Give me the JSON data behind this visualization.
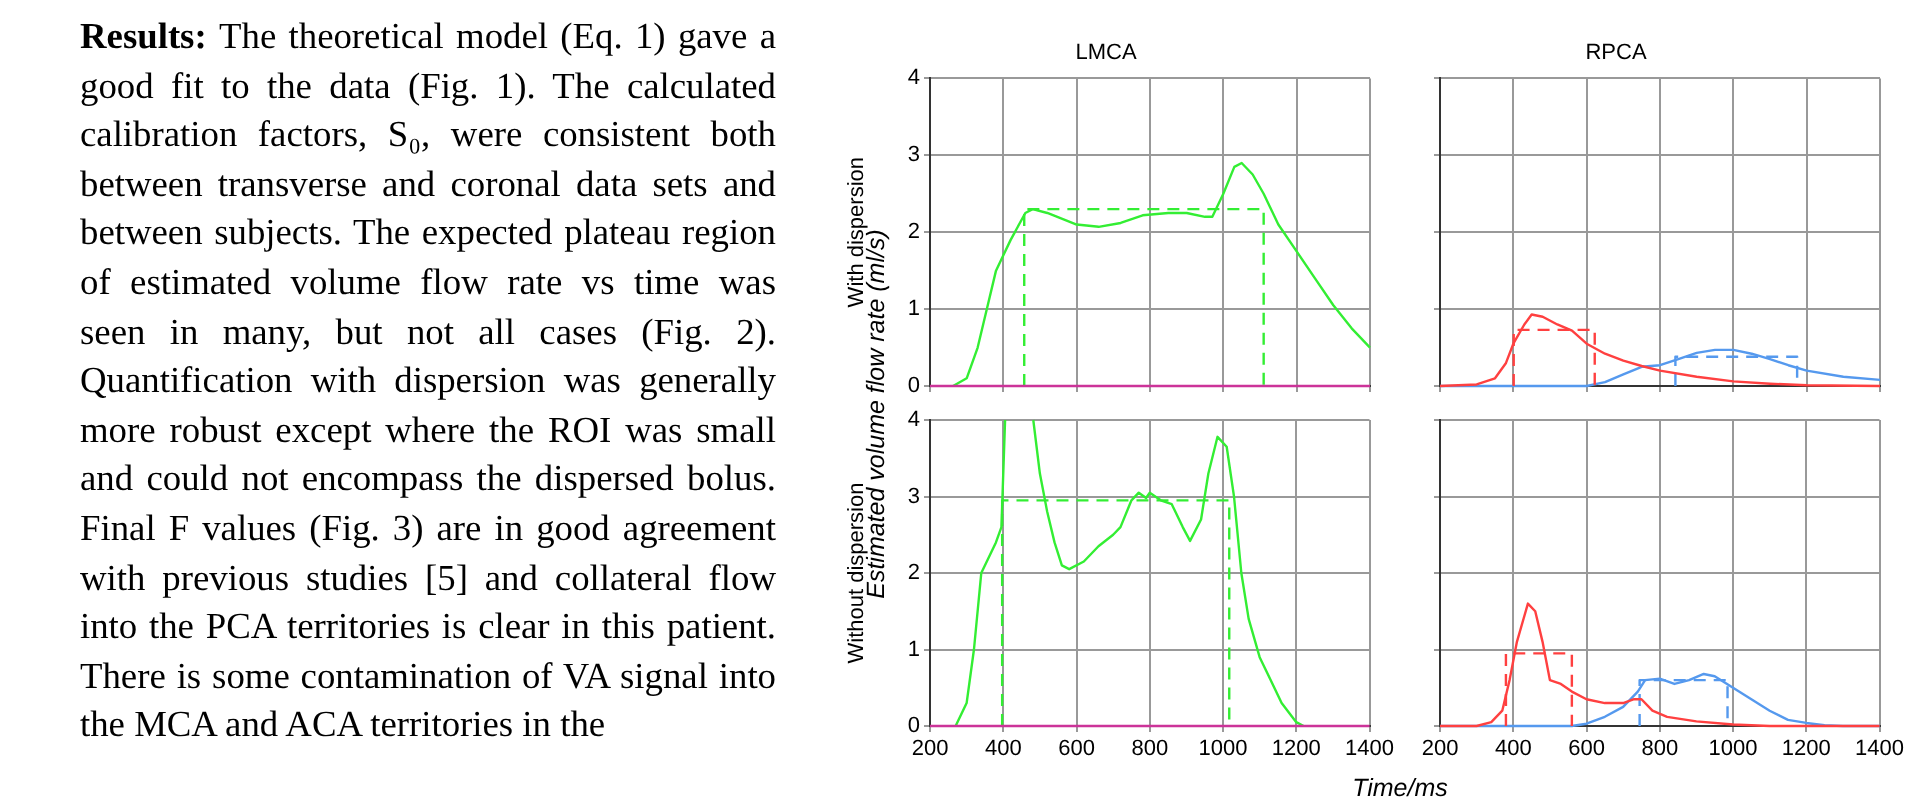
{
  "chart_data": [
    {
      "type": "other",
      "annotations": [
        "Results:",
        "The theoretical model (Eq. 1) gave a good fit to the data (Fig. 1).  The calculated calibration factors, S₀, were consistent both between transverse and coronal data sets and between subjects.  The expected plateau region of estimated volume flow rate vs time was seen in many, but not all cases (Fig. 2). Quantification with dispersion was generally more robust except where the ROI was small and could not encompass the dispersed bolus.  Final F values (Fig. 3) are in good agreement with previous studies [5] and collateral flow into the PCA territories is clear in this patient. There is some contamination of VA signal into the MCA and ACA territories in the"
      ]
    },
    {
      "type": "line",
      "title": "LMCA",
      "ylabel": "With dispersion",
      "annotations": [
        "Estimated volume flow rate (ml/s)"
      ],
      "xlim": [
        200,
        1400
      ],
      "xticks": [
        200,
        400,
        600,
        800,
        1000,
        1200,
        1400
      ],
      "ylim": [
        0,
        4
      ],
      "yticks": [
        0,
        1,
        2,
        3,
        4
      ],
      "grid": true,
      "tick_labels": "y",
      "series": [
        {
          "color": "#cc3399",
          "x": [
            200,
            1400
          ],
          "values": [
            0,
            0
          ]
        },
        {
          "color": "#33ee33",
          "x": [
            263,
            300,
            330,
            350,
            380,
            420,
            460,
            480,
            520,
            600,
            660,
            720,
            780,
            850,
            900,
            950,
            970,
            1000,
            1030,
            1050,
            1080,
            1110,
            1150,
            1200,
            1250,
            1300,
            1350,
            1400
          ],
          "values": [
            0,
            0.1,
            0.5,
            0.9,
            1.5,
            1.9,
            2.25,
            2.3,
            2.25,
            2.1,
            2.07,
            2.12,
            2.22,
            2.25,
            2.25,
            2.2,
            2.2,
            2.5,
            2.85,
            2.9,
            2.75,
            2.5,
            2.1,
            1.75,
            1.4,
            1.05,
            0.75,
            0.5
          ]
        },
        {
          "color": "#33ee33",
          "line_style": "dashed",
          "x": [
            457,
            457,
            1110,
            1110
          ],
          "values": [
            0,
            2.3,
            2.3,
            0
          ]
        }
      ]
    },
    {
      "type": "line",
      "title": "RPCA",
      "xlim": [
        200,
        1400
      ],
      "xticks": [
        200,
        400,
        600,
        800,
        1000,
        1200,
        1400
      ],
      "ylim": [
        0,
        4
      ],
      "yticks": [
        0,
        1,
        2,
        3,
        4
      ],
      "grid": true,
      "tick_labels": false,
      "series": [
        {
          "color": "#ff4040",
          "x": [
            200,
            300,
            350,
            380,
            400,
            430,
            450,
            480,
            520,
            560,
            600,
            650,
            700,
            750,
            800,
            900,
            1000,
            1100,
            1200,
            1400
          ],
          "values": [
            0,
            0.02,
            0.1,
            0.3,
            0.55,
            0.8,
            0.93,
            0.9,
            0.8,
            0.72,
            0.55,
            0.42,
            0.33,
            0.26,
            0.2,
            0.12,
            0.06,
            0.03,
            0.01,
            0
          ]
        },
        {
          "color": "#ff4040",
          "line_style": "dashed",
          "x": [
            401,
            401,
            622,
            622
          ],
          "values": [
            0,
            0.73,
            0.73,
            0
          ]
        },
        {
          "color": "#5599ee",
          "x": [
            200,
            600,
            650,
            700,
            750,
            800,
            850,
            900,
            950,
            1000,
            1050,
            1100,
            1150,
            1200,
            1300,
            1400
          ],
          "values": [
            0,
            0,
            0.05,
            0.15,
            0.25,
            0.27,
            0.35,
            0.43,
            0.47,
            0.47,
            0.42,
            0.35,
            0.27,
            0.2,
            0.12,
            0.08
          ]
        },
        {
          "color": "#5599ee",
          "line_style": "dashed",
          "x": [
            842,
            842,
            1174,
            1174
          ],
          "values": [
            0,
            0.38,
            0.38,
            0
          ]
        }
      ]
    },
    {
      "type": "line",
      "ylabel": "Without dispersion",
      "xlabel": "Time/ms",
      "xlim": [
        200,
        1400
      ],
      "xticks": [
        200,
        400,
        600,
        800,
        1000,
        1200,
        1400
      ],
      "ylim": [
        0,
        4
      ],
      "yticks": [
        0,
        1,
        2,
        3,
        4
      ],
      "grid": true,
      "series": [
        {
          "color": "#cc3399",
          "x": [
            200,
            1400
          ],
          "values": [
            0,
            0
          ]
        },
        {
          "color": "#33ee33",
          "x": [
            270,
            300,
            320,
            340,
            360,
            380,
            395,
            405,
            440,
            482,
            500,
            520,
            540,
            560,
            580,
            620,
            660,
            700,
            720,
            750,
            770,
            790,
            800,
            830,
            860,
            890,
            910,
            940,
            960,
            985,
            1010,
            1030,
            1050,
            1070,
            1100,
            1130,
            1160,
            1200,
            1220
          ],
          "values": [
            0,
            0.3,
            1.0,
            2.0,
            2.2,
            2.4,
            2.6,
            4,
            null,
            4,
            3.3,
            2.8,
            2.4,
            2.1,
            2.05,
            2.15,
            2.35,
            2.5,
            2.6,
            2.95,
            3.05,
            2.98,
            3.05,
            2.95,
            2.9,
            2.6,
            2.42,
            2.7,
            3.3,
            3.78,
            3.65,
            3.0,
            2.0,
            1.4,
            0.9,
            0.6,
            0.3,
            0.05,
            0
          ]
        },
        {
          "color": "#33ee33",
          "line_style": "dashed",
          "x": [
            397,
            397,
            1017,
            1017
          ],
          "values": [
            0,
            2.95,
            2.95,
            0
          ]
        }
      ]
    },
    {
      "type": "line",
      "xlim": [
        200,
        1400
      ],
      "xticks": [
        200,
        400,
        600,
        800,
        1000,
        1200,
        1400
      ],
      "ylim": [
        0,
        4
      ],
      "yticks": [
        0,
        1,
        2,
        3,
        4
      ],
      "grid": true,
      "tick_labels": "x",
      "series": [
        {
          "color": "#ff4040",
          "x": [
            200,
            300,
            340,
            370,
            390,
            410,
            440,
            460,
            480,
            500,
            530,
            560,
            600,
            650,
            700,
            730,
            750,
            780,
            820,
            900,
            1000,
            1100,
            1400
          ],
          "values": [
            0,
            0,
            0.05,
            0.2,
            0.6,
            1.1,
            1.6,
            1.5,
            1.1,
            0.6,
            0.55,
            0.45,
            0.35,
            0.3,
            0.3,
            0.35,
            0.35,
            0.2,
            0.12,
            0.06,
            0.02,
            0,
            0
          ]
        },
        {
          "color": "#ff4040",
          "line_style": "dashed",
          "x": [
            380,
            380,
            560,
            560
          ],
          "values": [
            0,
            0.95,
            0.95,
            0
          ]
        },
        {
          "color": "#5599ee",
          "x": [
            200,
            560,
            600,
            650,
            700,
            740,
            760,
            800,
            840,
            880,
            920,
            950,
            1000,
            1050,
            1100,
            1150,
            1200,
            1250,
            1300,
            1400
          ],
          "values": [
            0,
            0,
            0.03,
            0.12,
            0.25,
            0.45,
            0.6,
            0.62,
            0.55,
            0.6,
            0.68,
            0.65,
            0.5,
            0.35,
            0.2,
            0.08,
            0.04,
            0.01,
            0,
            0
          ]
        },
        {
          "color": "#5599ee",
          "line_style": "dashed",
          "x": [
            745,
            745,
            985,
            985
          ],
          "values": [
            0,
            0.6,
            0.6,
            0
          ]
        }
      ]
    }
  ]
}
